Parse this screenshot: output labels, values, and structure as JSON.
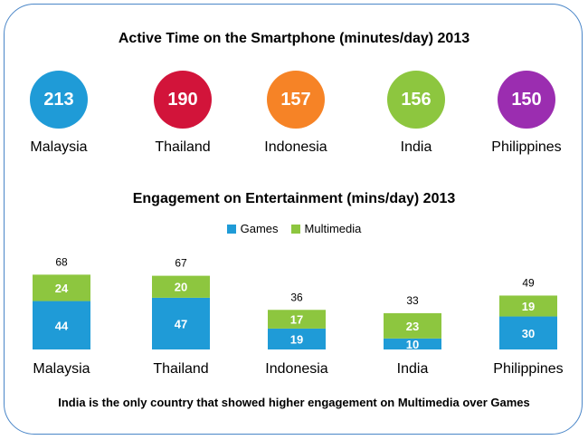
{
  "title": "Active Time on the Smartphone (minutes/day) 2013",
  "active_time": [
    {
      "country": "Malaysia",
      "value": "213",
      "color": "#1f9bd7"
    },
    {
      "country": "Thailand",
      "value": "190",
      "color": "#d2143a"
    },
    {
      "country": "Indonesia",
      "value": "157",
      "color": "#f68326"
    },
    {
      "country": "India",
      "value": "156",
      "color": "#8dc63f"
    },
    {
      "country": "Philippines",
      "value": "150",
      "color": "#9b2db0"
    }
  ],
  "footnote": "India is the only country that showed higher engagement on Multimedia over Games",
  "chart_data": {
    "type": "bar",
    "stacked": true,
    "title": "Engagement on Entertainment (mins/day) 2013",
    "categories": [
      "Malaysia",
      "Thailand",
      "Indonesia",
      "India",
      "Philippines"
    ],
    "series": [
      {
        "name": "Games",
        "values": [
          44,
          47,
          19,
          10,
          30
        ],
        "color": "#1f9bd7"
      },
      {
        "name": "Multimedia",
        "values": [
          24,
          20,
          17,
          23,
          19
        ],
        "color": "#8dc63f"
      }
    ],
    "totals": [
      68,
      67,
      36,
      33,
      49
    ],
    "legend": "top-center"
  }
}
